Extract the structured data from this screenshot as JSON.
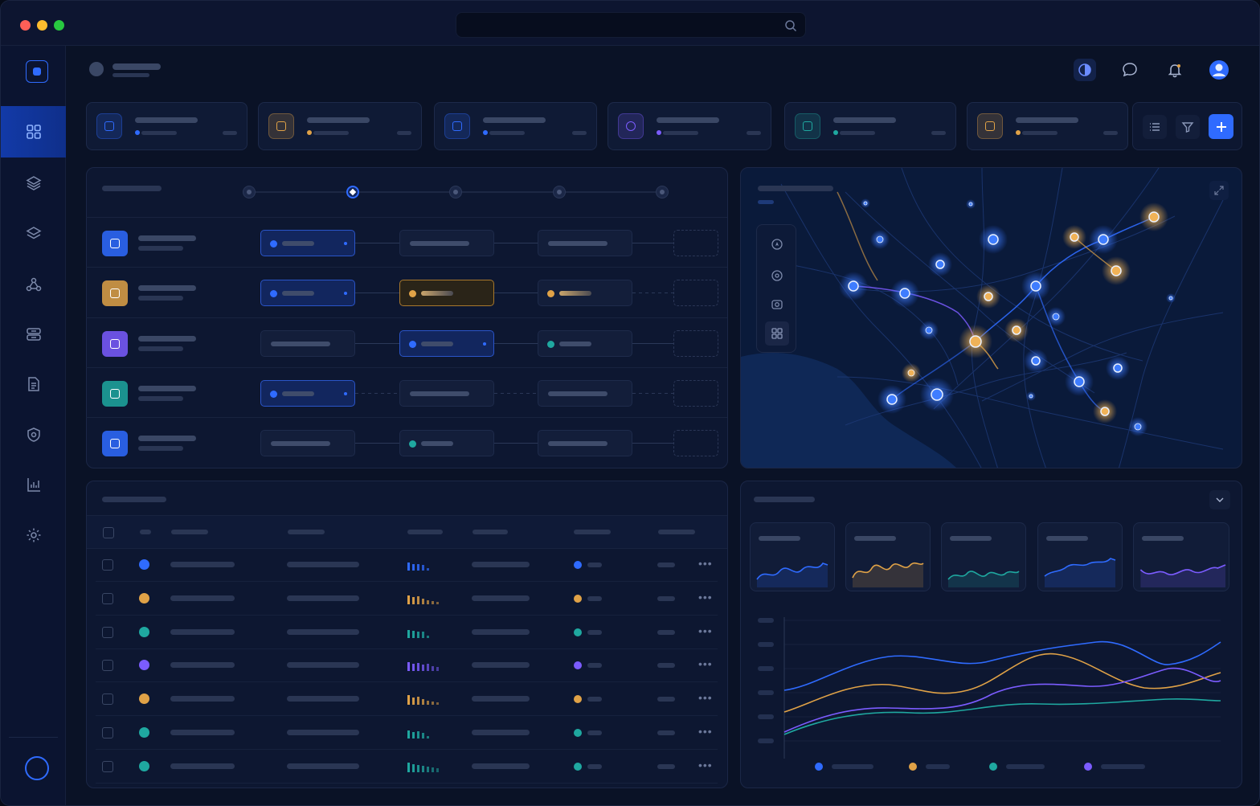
{
  "window": {
    "controls": [
      {
        "name": "close",
        "color": "#ff5f57"
      },
      {
        "name": "minimize",
        "color": "#febc2e"
      },
      {
        "name": "zoom",
        "color": "#28c840"
      }
    ],
    "search": {
      "placeholder": "",
      "value": ""
    }
  },
  "colors": {
    "accent": "#2f6bff",
    "orange": "#e0a247",
    "teal": "#1fa8a0",
    "purple": "#7b5cff",
    "background": "#0a1226"
  },
  "sidebar": {
    "items": [
      {
        "icon": "dashboard-grid-icon",
        "active": true
      },
      {
        "icon": "layers-icon",
        "active": false
      },
      {
        "icon": "stack-icon",
        "active": false
      },
      {
        "icon": "network-nodes-icon",
        "active": false
      },
      {
        "icon": "server-transfer-icon",
        "active": false
      },
      {
        "icon": "document-icon",
        "active": false
      },
      {
        "icon": "shield-settings-icon",
        "active": false
      },
      {
        "icon": "bar-chart-icon",
        "active": false
      },
      {
        "icon": "gear-icon",
        "active": false
      }
    ]
  },
  "header": {
    "actions": [
      "contrast-toggle-icon",
      "chat-bubble-icon",
      "bell-icon",
      "user-avatar-icon"
    ]
  },
  "summary_cards": [
    {
      "icon": "square-icon",
      "color": "#2f6bff"
    },
    {
      "icon": "package-icon",
      "color": "#e0a247"
    },
    {
      "icon": "airplane-icon",
      "color": "#2f6bff"
    },
    {
      "icon": "pie-chart-icon",
      "color": "#7b5cff"
    },
    {
      "icon": "calendar-icon",
      "color": "#1fa8a0"
    },
    {
      "icon": "check-circle-icon",
      "color": "#e0a247"
    }
  ],
  "toolbar": {
    "actions": [
      "list-view-icon",
      "filter-icon",
      "plus-icon"
    ]
  },
  "workflow": {
    "steps": 5,
    "active_step": 2,
    "rows": [
      {
        "icon": "grid-icon",
        "color": "#2f6bff",
        "nodes": [
          "blue",
          "plain",
          "plain",
          "empty"
        ]
      },
      {
        "icon": "box-icon",
        "color": "#e0a247",
        "nodes": [
          "blue",
          "orange",
          "orange-dot",
          "empty"
        ]
      },
      {
        "icon": "cube-icon",
        "color": "#7b5cff",
        "nodes": [
          "plain",
          "blue",
          "teal-dot",
          "empty"
        ]
      },
      {
        "icon": "calendar-check-icon",
        "color": "#1fa8a0",
        "nodes": [
          "blue",
          "plain",
          "plain",
          "empty"
        ]
      },
      {
        "icon": "refresh-icon",
        "color": "#2f6bff",
        "nodes": [
          "plain",
          "teal-dot",
          "plain",
          "empty"
        ]
      }
    ]
  },
  "map": {
    "tools": [
      "locate-icon",
      "map-pin-icon",
      "camera-icon",
      "scan-icon"
    ],
    "expand_icon": "expand-icon"
  },
  "table": {
    "rows": [
      {
        "color": "#2f6bff"
      },
      {
        "color": "#e0a247"
      },
      {
        "color": "#1fa8a0"
      },
      {
        "color": "#7b5cff"
      },
      {
        "color": "#e0a247"
      },
      {
        "color": "#1fa8a0"
      },
      {
        "color": "#1fa8a0"
      }
    ]
  },
  "analytics": {
    "sparklines": [
      {
        "color": "#2f6bff"
      },
      {
        "color": "#e0a247"
      },
      {
        "color": "#1fa8a0"
      },
      {
        "color": "#2f6bff"
      },
      {
        "color": "#7b5cff"
      }
    ],
    "series": [
      {
        "color": "#2f6bff"
      },
      {
        "color": "#e0a247"
      },
      {
        "color": "#1fa8a0"
      },
      {
        "color": "#7b5cff"
      }
    ]
  }
}
